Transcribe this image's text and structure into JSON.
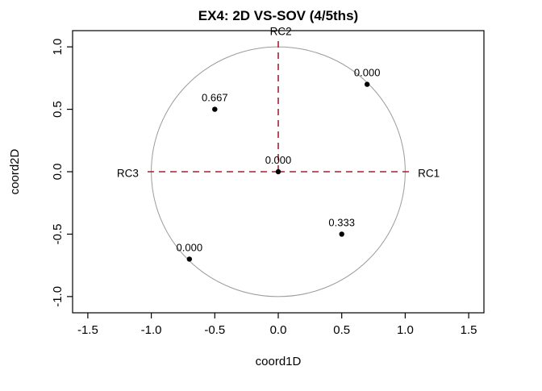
{
  "chart_data": {
    "type": "scatter",
    "title": "EX4: 2D VS-SOV (4/5ths)",
    "xlabel": "coord1D",
    "ylabel": "coord2D",
    "x_range": [
      -1.62,
      1.62
    ],
    "y_range": [
      -1.13,
      1.13
    ],
    "xtick_labels": [
      "-1.5",
      "-1.0",
      "-0.5",
      "0.0",
      "0.5",
      "1.0",
      "1.5"
    ],
    "ytick_labels": [
      "-1.0",
      "-0.5",
      "0.0",
      "0.5",
      "1.0"
    ],
    "grid": false,
    "legend": false,
    "circle": {
      "cx": 0,
      "cy": 0,
      "r": 1
    },
    "points": [
      {
        "x": 0.7,
        "y": 0.7,
        "label": "0.000"
      },
      {
        "x": -0.5,
        "y": 0.5,
        "label": "0.667"
      },
      {
        "x": 0.0,
        "y": 0.0,
        "label": "0.000"
      },
      {
        "x": 0.5,
        "y": -0.5,
        "label": "0.333"
      },
      {
        "x": -0.7,
        "y": -0.7,
        "label": "0.000"
      }
    ],
    "guides": [
      {
        "label": "RC2",
        "x1": 0,
        "y1": 0,
        "x2": 0,
        "y2": 1.05,
        "lx": 0.02,
        "ly": 1.12,
        "anchor": "middle"
      },
      {
        "label": "RC1",
        "x1": 0,
        "y1": 0,
        "x2": 1.05,
        "y2": 0,
        "lx": 1.1,
        "ly": -0.015,
        "anchor": "start"
      },
      {
        "label": "RC3",
        "x1": 0,
        "y1": 0,
        "x2": -1.05,
        "y2": 0,
        "lx": -1.1,
        "ly": -0.015,
        "anchor": "end"
      }
    ],
    "colors": {
      "guides": "#a12232",
      "points": "#000000",
      "circle": "#9b9b9b",
      "axis": "#000000"
    }
  }
}
